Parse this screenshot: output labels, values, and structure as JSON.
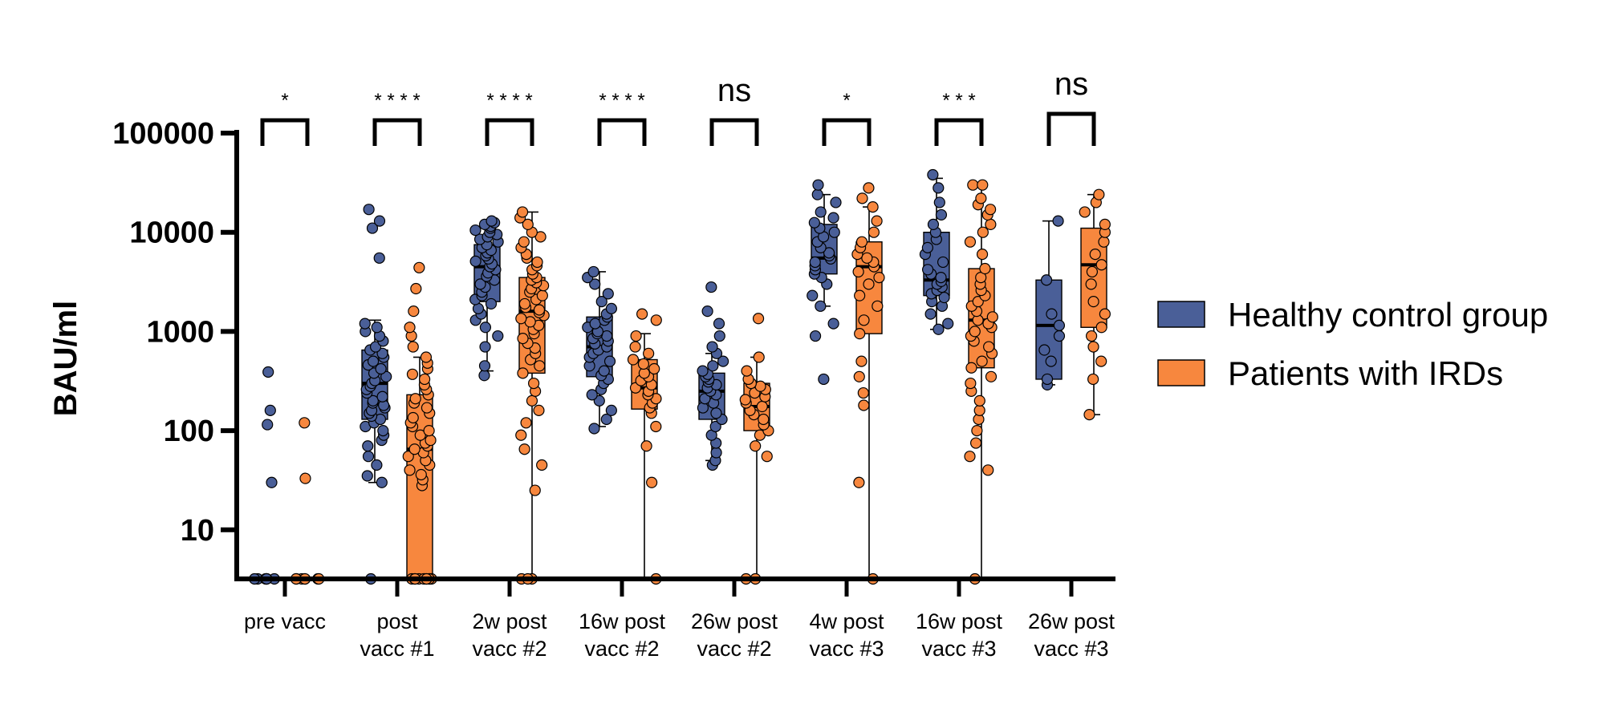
{
  "chart_data": {
    "type": "box",
    "scale": "log10",
    "ylabel": "BAU/ml",
    "ylim": [
      3.2,
      100000
    ],
    "yticks": [
      {
        "value": 10,
        "label": "10"
      },
      {
        "value": 100,
        "label": "100"
      },
      {
        "value": 1000,
        "label": "1000"
      },
      {
        "value": 10000,
        "label": "10000"
      },
      {
        "value": 100000,
        "label": "100000"
      }
    ],
    "categories": [
      {
        "lines": [
          "pre vacc"
        ]
      },
      {
        "lines": [
          "post",
          "vacc #1"
        ]
      },
      {
        "lines": [
          "2w post",
          "vacc #2"
        ]
      },
      {
        "lines": [
          "16w post",
          "vacc #2"
        ]
      },
      {
        "lines": [
          "26w post",
          "vacc #2"
        ]
      },
      {
        "lines": [
          "4w post",
          "vacc #3"
        ]
      },
      {
        "lines": [
          "16w post",
          "vacc #3"
        ]
      },
      {
        "lines": [
          "26w post",
          "vacc #3"
        ]
      }
    ],
    "significance": [
      "*",
      "* * * *",
      "* * * *",
      "* * * *",
      "ns",
      "*",
      "* * *",
      "ns"
    ],
    "legend_position": "right",
    "series": [
      {
        "name": "Healthy control group",
        "color": "#4a5f98",
        "boxes": [
          {
            "q1": 3.2,
            "median": 3.2,
            "q3": 3.2,
            "wlow": 3.2,
            "whigh": 3.2
          },
          {
            "q1": 130,
            "median": 300,
            "q3": 650,
            "wlow": 30,
            "whigh": 1300
          },
          {
            "q1": 2000,
            "median": 4500,
            "q3": 7500,
            "wlow": 400,
            "whigh": 13000
          },
          {
            "q1": 350,
            "median": 700,
            "q3": 1400,
            "wlow": 110,
            "whigh": 4000
          },
          {
            "q1": 130,
            "median": 250,
            "q3": 380,
            "wlow": 50,
            "whigh": 600
          },
          {
            "q1": 3800,
            "median": 5500,
            "q3": 12000,
            "wlow": 1800,
            "whigh": 24000
          },
          {
            "q1": 2300,
            "median": 3300,
            "q3": 10000,
            "wlow": 1050,
            "whigh": 35000
          },
          {
            "q1": 330,
            "median": 1150,
            "q3": 3300,
            "wlow": 290,
            "whigh": 13000
          }
        ],
        "points": [
          [
            3.2,
            3.2,
            3.2,
            3.2,
            3.2,
            3.2,
            3.2,
            30,
            115,
            160,
            390
          ],
          [
            3.2,
            30,
            35,
            45,
            55,
            70,
            80,
            90,
            100,
            110,
            120,
            130,
            140,
            150,
            160,
            170,
            180,
            190,
            200,
            220,
            240,
            260,
            280,
            300,
            320,
            350,
            380,
            420,
            460,
            500,
            550,
            600,
            650,
            700,
            800,
            900,
            1000,
            1100,
            1200,
            5500,
            11000,
            13000,
            17000
          ],
          [
            360,
            450,
            700,
            900,
            1100,
            1300,
            1500,
            1700,
            1900,
            2100,
            2300,
            2500,
            2800,
            3000,
            3300,
            3600,
            3900,
            4200,
            4500,
            4800,
            5100,
            5400,
            5800,
            6200,
            6600,
            7000,
            7500,
            8000,
            8500,
            9000,
            9500,
            10000,
            10500,
            11000,
            11500,
            12000,
            12500,
            13000
          ],
          [
            105,
            130,
            160,
            200,
            230,
            260,
            300,
            330,
            360,
            400,
            450,
            500,
            550,
            600,
            650,
            700,
            750,
            800,
            850,
            900,
            950,
            1000,
            1100,
            1200,
            1300,
            1400,
            1500,
            1700,
            2000,
            2400,
            3000,
            3500,
            4000
          ],
          [
            45,
            50,
            60,
            75,
            90,
            110,
            130,
            150,
            170,
            190,
            210,
            230,
            250,
            270,
            290,
            310,
            330,
            350,
            370,
            400,
            450,
            500,
            600,
            700,
            900,
            1200,
            1600,
            2800
          ],
          [
            330,
            900,
            1200,
            1800,
            2300,
            3000,
            3500,
            3800,
            4200,
            4600,
            5000,
            5400,
            5800,
            6200,
            7000,
            8000,
            9000,
            10000,
            11000,
            12500,
            14000,
            16000,
            20000,
            24000,
            30000
          ],
          [
            1050,
            1200,
            1500,
            1800,
            2000,
            2200,
            2400,
            2600,
            2800,
            3000,
            3200,
            3500,
            3800,
            4200,
            5000,
            6000,
            7000,
            8500,
            10000,
            12000,
            15000,
            20000,
            28000,
            38000
          ],
          [
            290,
            330,
            500,
            650,
            900,
            1150,
            1500,
            3300,
            13000
          ]
        ]
      },
      {
        "name": "Patients with IRDs",
        "color": "#f7873e",
        "boxes": [
          {
            "q1": 3.2,
            "median": 3.2,
            "q3": 3.2,
            "wlow": 3.2,
            "whigh": 3.2
          },
          {
            "q1": 3.2,
            "median": 65,
            "q3": 230,
            "wlow": 3.2,
            "whigh": 550
          },
          {
            "q1": 380,
            "median": 1600,
            "q3": 3500,
            "wlow": 3.2,
            "whigh": 16000
          },
          {
            "q1": 165,
            "median": 270,
            "q3": 520,
            "wlow": 3.2,
            "whigh": 950
          },
          {
            "q1": 100,
            "median": 175,
            "q3": 300,
            "wlow": 3.2,
            "whigh": 550
          },
          {
            "q1": 950,
            "median": 4500,
            "q3": 8000,
            "wlow": 3.2,
            "whigh": 18000
          },
          {
            "q1": 430,
            "median": 1300,
            "q3": 4300,
            "wlow": 3.2,
            "whigh": 30000
          },
          {
            "q1": 1100,
            "median": 4700,
            "q3": 11000,
            "wlow": 145,
            "whigh": 24000
          }
        ],
        "points": [
          [
            3.2,
            3.2,
            3.2,
            3.2,
            3.2,
            3.2,
            3.2,
            33,
            120
          ],
          [
            3.2,
            3.2,
            3.2,
            3.2,
            3.2,
            3.2,
            3.2,
            3.2,
            3.2,
            3.2,
            3.2,
            3.2,
            28,
            32,
            36,
            40,
            45,
            50,
            55,
            60,
            65,
            70,
            75,
            80,
            90,
            100,
            110,
            120,
            135,
            150,
            170,
            190,
            210,
            230,
            260,
            290,
            330,
            370,
            420,
            480,
            550,
            700,
            900,
            1100,
            1600,
            2700,
            4400
          ],
          [
            3.2,
            3.2,
            3.2,
            25,
            45,
            65,
            90,
            120,
            160,
            200,
            250,
            300,
            380,
            450,
            520,
            600,
            680,
            760,
            850,
            950,
            1050,
            1150,
            1250,
            1350,
            1450,
            1550,
            1650,
            1750,
            1900,
            2100,
            2300,
            2500,
            2700,
            2900,
            3100,
            3300,
            3500,
            3800,
            4200,
            4600,
            5000,
            5500,
            6000,
            7000,
            8000,
            9000,
            10000,
            12000,
            14000,
            16000
          ],
          [
            3.2,
            30,
            70,
            110,
            150,
            170,
            190,
            210,
            230,
            250,
            270,
            290,
            320,
            350,
            380,
            420,
            470,
            520,
            600,
            700,
            900,
            1300,
            1500
          ],
          [
            3.2,
            3.2,
            55,
            70,
            90,
            100,
            115,
            130,
            145,
            160,
            175,
            190,
            205,
            220,
            240,
            260,
            280,
            300,
            330,
            400,
            550,
            1350
          ],
          [
            3.2,
            30,
            180,
            240,
            350,
            500,
            950,
            1300,
            1800,
            2300,
            3000,
            3500,
            4000,
            4500,
            5000,
            5500,
            6000,
            7000,
            8000,
            10000,
            13000,
            18000,
            22000,
            28000
          ],
          [
            3.2,
            40,
            55,
            75,
            100,
            130,
            160,
            200,
            250,
            300,
            350,
            430,
            500,
            600,
            700,
            800,
            900,
            1000,
            1100,
            1200,
            1300,
            1400,
            1600,
            1800,
            2000,
            2300,
            2600,
            3000,
            3500,
            4300,
            6000,
            8000,
            10000,
            12000,
            15000,
            17000,
            19000,
            22000,
            30000,
            30000
          ],
          [
            145,
            330,
            500,
            700,
            900,
            1100,
            1500,
            2000,
            3000,
            4000,
            4700,
            6000,
            8000,
            10000,
            12000,
            16000,
            20000,
            24000
          ]
        ]
      }
    ]
  }
}
